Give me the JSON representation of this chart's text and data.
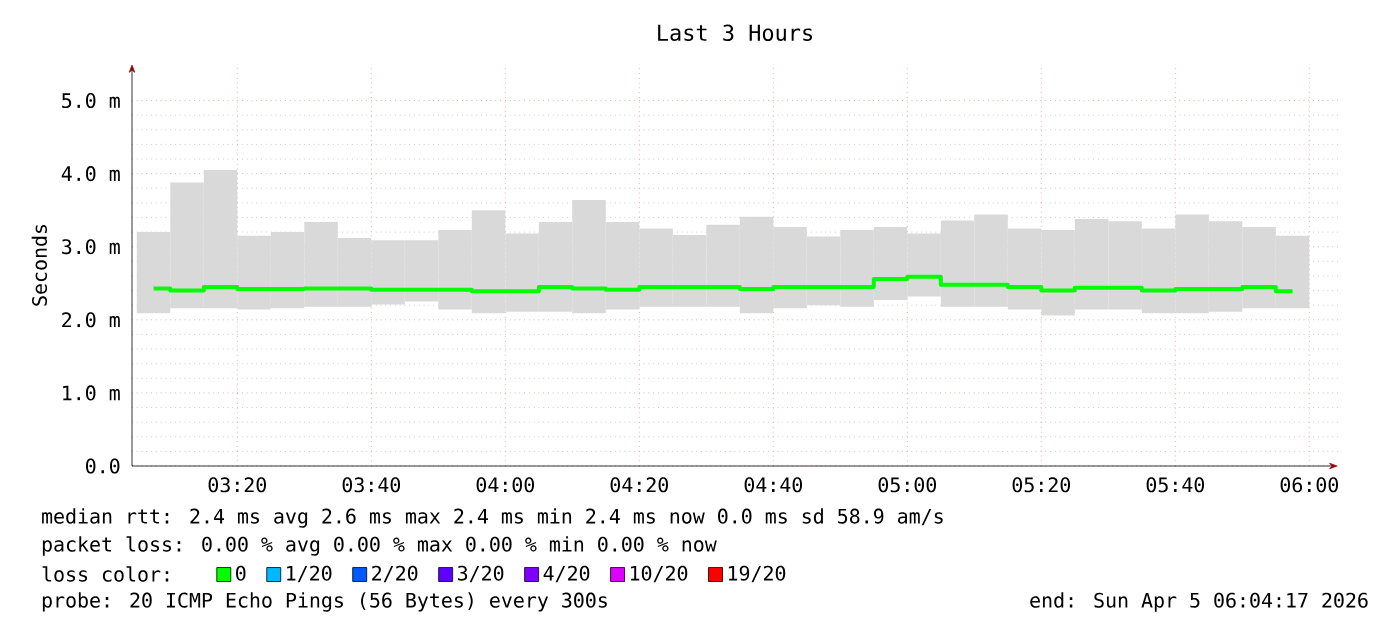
{
  "chart_data": {
    "type": "bar",
    "title": "Last 3 Hours",
    "ylabel": "Seconds",
    "x": [
      3.125,
      3.2083,
      3.2917,
      3.375,
      3.4583,
      3.5417,
      3.625,
      3.7083,
      3.7917,
      3.875,
      3.9583,
      4.0417,
      4.125,
      4.2083,
      4.2917,
      4.375,
      4.4583,
      4.5417,
      4.625,
      4.7083,
      4.7917,
      4.875,
      4.9583,
      5.0417,
      5.125,
      5.2083,
      5.2917,
      5.375,
      5.4583,
      5.5417,
      5.625,
      5.7083,
      5.7917,
      5.875,
      5.9583
    ],
    "series": [
      {
        "color": "#d9d9d9",
        "base": [
          2.09,
          2.16,
          2.16,
          2.14,
          2.16,
          2.18,
          2.18,
          2.21,
          2.25,
          2.14,
          2.09,
          2.11,
          2.11,
          2.09,
          2.14,
          2.18,
          2.18,
          2.18,
          2.09,
          2.16,
          2.2,
          2.18,
          2.27,
          2.32,
          2.18,
          2.18,
          2.14,
          2.06,
          2.14,
          2.14,
          2.09,
          2.09,
          2.11,
          2.16,
          2.16
        ],
        "values": [
          1.11,
          1.72,
          1.89,
          1.01,
          1.04,
          1.16,
          0.94,
          0.88,
          0.84,
          1.09,
          1.41,
          1.07,
          1.23,
          1.55,
          1.2,
          1.07,
          0.98,
          1.12,
          1.32,
          1.11,
          0.94,
          1.05,
          1.0,
          0.86,
          1.18,
          1.26,
          1.11,
          1.17,
          1.24,
          1.21,
          1.16,
          1.35,
          1.24,
          1.11,
          0.99
        ]
      },
      {
        "type": "step",
        "name": "0",
        "color": "#00ff00",
        "values": [
          2.43,
          2.4,
          2.45,
          2.42,
          2.42,
          2.43,
          2.43,
          2.41,
          2.41,
          2.41,
          2.39,
          2.39,
          2.45,
          2.43,
          2.41,
          2.45,
          2.45,
          2.45,
          2.42,
          2.45,
          2.45,
          2.45,
          2.56,
          2.59,
          2.48,
          2.48,
          2.45,
          2.4,
          2.44,
          2.44,
          2.4,
          2.42,
          2.42,
          2.45,
          2.39
        ]
      },
      {
        "type": "step",
        "name": "1/20",
        "color": "#00b8ff",
        "values": [
          null,
          null,
          null,
          null,
          null,
          null,
          null,
          null,
          null,
          null,
          null,
          null,
          null,
          null,
          null,
          null,
          null,
          null,
          null,
          null,
          null,
          null,
          null,
          null,
          null,
          null,
          null,
          null,
          null,
          null,
          null,
          null,
          null,
          null,
          null
        ]
      },
      {
        "type": "step",
        "name": "2/20",
        "color": "#0059ff",
        "values": [
          null,
          null,
          null,
          null,
          null,
          null,
          null,
          null,
          null,
          null,
          null,
          null,
          null,
          null,
          null,
          null,
          null,
          null,
          null,
          null,
          null,
          null,
          null,
          null,
          null,
          null,
          null,
          null,
          null,
          null,
          null,
          null,
          null,
          null,
          null
        ]
      },
      {
        "type": "step",
        "name": "3/20",
        "color": "#5e00ff",
        "values": [
          null,
          null,
          null,
          null,
          null,
          null,
          null,
          null,
          null,
          null,
          null,
          null,
          null,
          null,
          null,
          null,
          null,
          null,
          null,
          null,
          null,
          null,
          null,
          null,
          null,
          null,
          null,
          null,
          null,
          null,
          null,
          null,
          null,
          null,
          null
        ]
      },
      {
        "type": "step",
        "name": "4/20",
        "color": "#7e00ff",
        "values": [
          null,
          null,
          null,
          null,
          null,
          null,
          null,
          null,
          null,
          null,
          null,
          null,
          null,
          null,
          null,
          null,
          null,
          null,
          null,
          null,
          null,
          null,
          null,
          null,
          null,
          null,
          null,
          null,
          null,
          null,
          null,
          null,
          null,
          null,
          null
        ]
      },
      {
        "type": "step",
        "name": "10/20",
        "color": "#dd00ff",
        "values": [
          null,
          null,
          null,
          null,
          null,
          null,
          null,
          null,
          null,
          null,
          null,
          null,
          null,
          null,
          null,
          null,
          null,
          null,
          null,
          null,
          null,
          null,
          null,
          null,
          null,
          null,
          null,
          null,
          null,
          null,
          null,
          null,
          null,
          null,
          null
        ]
      },
      {
        "type": "step",
        "name": "19/20",
        "color": "#ff0000",
        "values": [
          null,
          null,
          null,
          null,
          null,
          null,
          null,
          null,
          null,
          null,
          null,
          null,
          null,
          null,
          null,
          null,
          null,
          null,
          null,
          null,
          null,
          null,
          null,
          null,
          null,
          null,
          null,
          null,
          null,
          null,
          null,
          null,
          null,
          null,
          null
        ]
      }
    ],
    "xlim": [
      3.0714,
      6.0714
    ],
    "ylim": [
      0,
      5.5
    ],
    "xticks": [
      {
        "value": 3.3333,
        "label": "03:20"
      },
      {
        "value": 3.6667,
        "label": "03:40"
      },
      {
        "value": 4,
        "label": "04:00"
      },
      {
        "value": 4.3333,
        "label": "04:20"
      },
      {
        "value": 4.6667,
        "label": "04:40"
      },
      {
        "value": 5,
        "label": "05:00"
      },
      {
        "value": 5.3333,
        "label": "05:20"
      },
      {
        "value": 5.6667,
        "label": "05:40"
      },
      {
        "value": 6,
        "label": "06:00"
      }
    ],
    "yticks": [
      {
        "value": 0,
        "label": "0.0"
      },
      {
        "value": 1,
        "label": "1.0 m"
      },
      {
        "value": 2,
        "label": "2.0 m"
      },
      {
        "value": 3,
        "label": "3.0 m"
      },
      {
        "value": 4,
        "label": "4.0 m"
      },
      {
        "value": 5,
        "label": "5.0 m"
      }
    ],
    "grid": true,
    "legend": "bottom",
    "marker": "none",
    "line_style": "solid",
    "annotations": [
      "median rtt:  2.4 ms avg  2.6 ms max  2.4 ms min  2.4 ms now  0.0 ms sd  58.9   am/s",
      "packet loss: 0.00 % avg  0.00 % max  0.00 % min  0.00 % now",
      "loss color:",
      "probe:       20 ICMP Echo Pings (56 Bytes) every 300s",
      "end: Sun Apr  5 06:04:17 2026"
    ]
  }
}
